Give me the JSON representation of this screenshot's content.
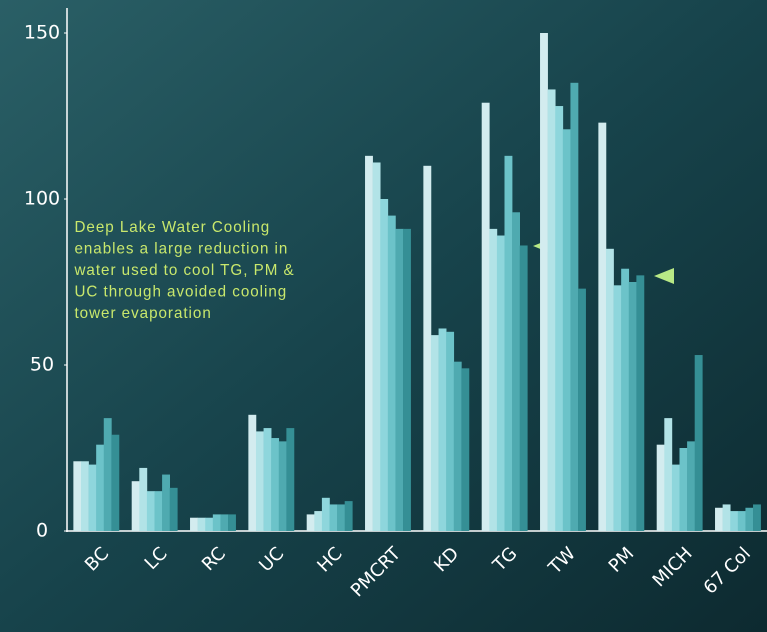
{
  "chart_data": {
    "type": "bar",
    "categories": [
      "BC",
      "LC",
      "RC",
      "UC",
      "HC",
      "PMCRT",
      "KD",
      "TG",
      "TW",
      "PM",
      "MICH",
      "67 Col"
    ],
    "series": [
      {
        "color": "#d3ecef",
        "values": [
          21,
          15,
          4,
          35,
          5,
          113,
          110,
          129,
          150,
          123,
          26,
          7
        ]
      },
      {
        "color": "#b2e3e7",
        "values": [
          21,
          19,
          4,
          30,
          6,
          111,
          59,
          91,
          133,
          85,
          34,
          8
        ]
      },
      {
        "color": "#8ed6dc",
        "values": [
          20,
          12,
          4,
          31,
          10,
          100,
          61,
          89,
          128,
          74,
          20,
          6
        ]
      },
      {
        "color": "#6cc3c9",
        "values": [
          26,
          12,
          5,
          28,
          8,
          95,
          60,
          113,
          121,
          79,
          25,
          6
        ]
      },
      {
        "color": "#4faab0",
        "values": [
          34,
          17,
          5,
          27,
          8,
          91,
          51,
          96,
          135,
          75,
          27,
          7
        ]
      },
      {
        "color": "#358f95",
        "values": [
          29,
          13,
          5,
          31,
          9,
          91,
          49,
          86,
          73,
          77,
          53,
          8
        ]
      }
    ],
    "annotation": [
      "Deep Lake Water Cooling",
      "enables a large reduction in",
      "water used to cool TG, PM &",
      "UC through avoided cooling",
      "tower evaporation"
    ],
    "ylim": [
      0,
      150
    ],
    "yticks": [
      0,
      50,
      100,
      150
    ]
  }
}
